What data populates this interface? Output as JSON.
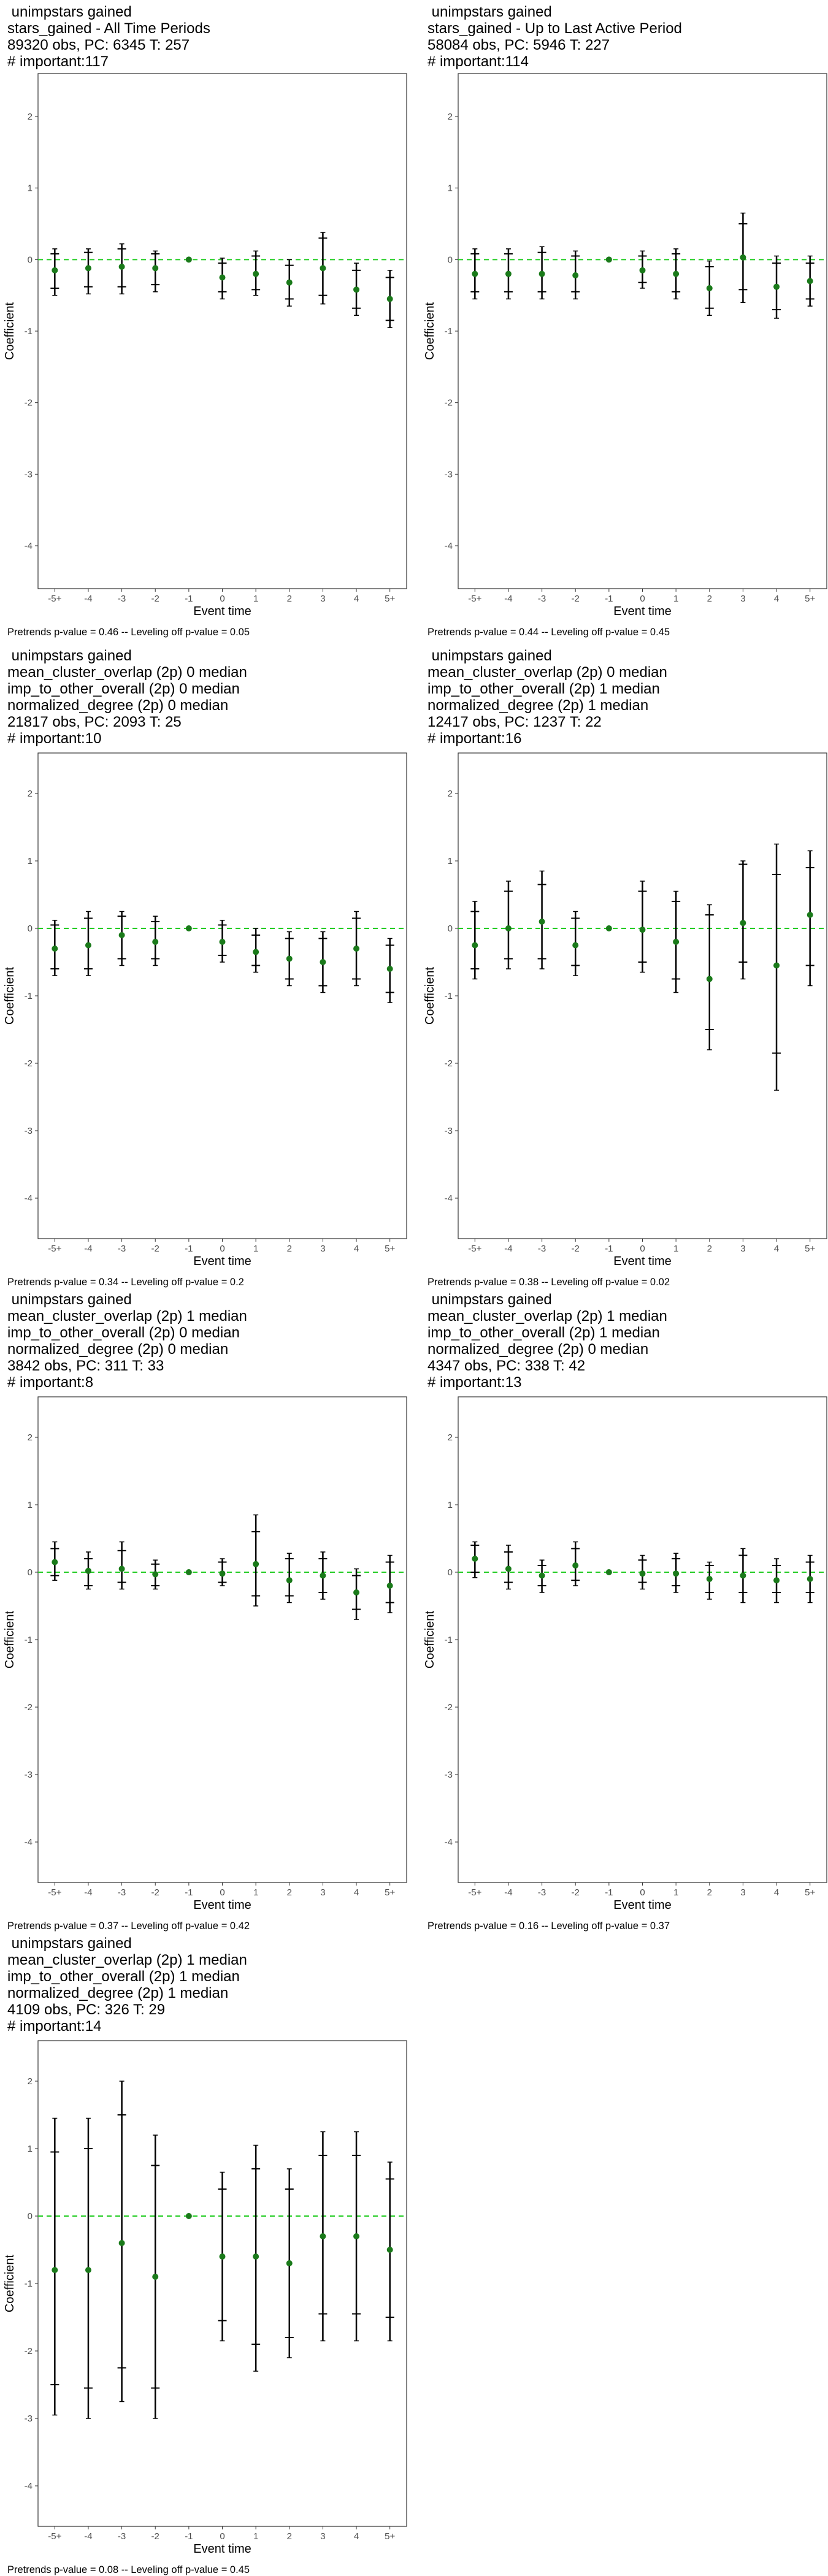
{
  "chart_data": [
    {
      "type": "scatter",
      "title_lines": [
        " unimpstars gained",
        "stars_gained - All Time Periods",
        "89320 obs, PC: 6345 T: 257",
        "# important:117"
      ],
      "xlabel": "Event time",
      "ylabel": "Coefficient",
      "categories": [
        "-5+",
        "-4",
        "-3",
        "-2",
        "-1",
        "0",
        "1",
        "2",
        "3",
        "4",
        "5+"
      ],
      "ylim": [
        -4.6,
        2.6
      ],
      "yticks": [
        2,
        1,
        0,
        -1,
        -2,
        -3,
        -4
      ],
      "reference_line": 0,
      "estimates": [
        -0.15,
        -0.12,
        -0.1,
        -0.12,
        0,
        -0.25,
        -0.2,
        -0.32,
        -0.12,
        -0.42,
        -0.55
      ],
      "ci90": [
        [
          -0.4,
          0.08
        ],
        [
          -0.38,
          0.1
        ],
        [
          -0.38,
          0.15
        ],
        [
          -0.35,
          0.08
        ],
        null,
        [
          -0.45,
          -0.05
        ],
        [
          -0.42,
          0.05
        ],
        [
          -0.55,
          -0.08
        ],
        [
          -0.5,
          0.3
        ],
        [
          -0.68,
          -0.15
        ],
        [
          -0.85,
          -0.25
        ]
      ],
      "ci95": [
        [
          -0.5,
          0.15
        ],
        [
          -0.48,
          0.15
        ],
        [
          -0.48,
          0.22
        ],
        [
          -0.45,
          0.12
        ],
        null,
        [
          -0.55,
          0.02
        ],
        [
          -0.5,
          0.12
        ],
        [
          -0.65,
          0.0
        ],
        [
          -0.62,
          0.38
        ],
        [
          -0.78,
          -0.05
        ],
        [
          -0.95,
          -0.15
        ]
      ],
      "footnote": "Pretrends p-value = 0.46 -- Leveling off p-value = 0.05",
      "colors": {
        "point": "#1a7a1a",
        "reference": "#22cc22"
      }
    },
    {
      "type": "scatter",
      "title_lines": [
        " unimpstars gained",
        "stars_gained - Up to Last Active Period",
        "58084 obs, PC: 5946 T: 227",
        "# important:114"
      ],
      "xlabel": "Event time",
      "ylabel": "Coefficient",
      "categories": [
        "-5+",
        "-4",
        "-3",
        "-2",
        "-1",
        "0",
        "1",
        "2",
        "3",
        "4",
        "5+"
      ],
      "ylim": [
        -4.6,
        2.6
      ],
      "yticks": [
        2,
        1,
        0,
        -1,
        -2,
        -3,
        -4
      ],
      "reference_line": 0,
      "estimates": [
        -0.2,
        -0.2,
        -0.2,
        -0.22,
        0,
        -0.15,
        -0.2,
        -0.4,
        0.03,
        -0.38,
        -0.3
      ],
      "ci90": [
        [
          -0.45,
          0.08
        ],
        [
          -0.45,
          0.08
        ],
        [
          -0.45,
          0.1
        ],
        [
          -0.45,
          0.05
        ],
        null,
        [
          -0.32,
          0.05
        ],
        [
          -0.45,
          0.08
        ],
        [
          -0.68,
          -0.1
        ],
        [
          -0.42,
          0.5
        ],
        [
          -0.7,
          -0.05
        ],
        [
          -0.55,
          -0.05
        ]
      ],
      "ci95": [
        [
          -0.55,
          0.15
        ],
        [
          -0.55,
          0.15
        ],
        [
          -0.55,
          0.18
        ],
        [
          -0.55,
          0.12
        ],
        null,
        [
          -0.4,
          0.12
        ],
        [
          -0.55,
          0.15
        ],
        [
          -0.78,
          -0.02
        ],
        [
          -0.6,
          0.65
        ],
        [
          -0.82,
          0.05
        ],
        [
          -0.65,
          0.05
        ]
      ],
      "footnote": "Pretrends p-value = 0.44 -- Leveling off p-value = 0.45",
      "colors": {
        "point": "#1a7a1a",
        "reference": "#22cc22"
      }
    },
    {
      "type": "scatter",
      "title_lines": [
        " unimpstars gained",
        "mean_cluster_overlap (2p) 0 median",
        "imp_to_other_overall (2p) 0 median",
        "normalized_degree (2p) 0 median",
        "21817 obs, PC: 2093 T: 25",
        "# important:10"
      ],
      "xlabel": "Event time",
      "ylabel": "Coefficient",
      "categories": [
        "-5+",
        "-4",
        "-3",
        "-2",
        "-1",
        "0",
        "1",
        "2",
        "3",
        "4",
        "5+"
      ],
      "ylim": [
        -4.6,
        2.6
      ],
      "yticks": [
        2,
        1,
        0,
        -1,
        -2,
        -3,
        -4
      ],
      "reference_line": 0,
      "estimates": [
        -0.3,
        -0.25,
        -0.1,
        -0.2,
        0,
        -0.2,
        -0.35,
        -0.45,
        -0.5,
        -0.3,
        -0.6
      ],
      "ci90": [
        [
          -0.6,
          0.05
        ],
        [
          -0.6,
          0.15
        ],
        [
          -0.45,
          0.18
        ],
        [
          -0.45,
          0.1
        ],
        null,
        [
          -0.4,
          0.05
        ],
        [
          -0.55,
          -0.1
        ],
        [
          -0.75,
          -0.15
        ],
        [
          -0.85,
          -0.15
        ],
        [
          -0.75,
          0.15
        ],
        [
          -0.95,
          -0.25
        ]
      ],
      "ci95": [
        [
          -0.7,
          0.12
        ],
        [
          -0.7,
          0.25
        ],
        [
          -0.55,
          0.25
        ],
        [
          -0.55,
          0.18
        ],
        null,
        [
          -0.5,
          0.12
        ],
        [
          -0.65,
          0.0
        ],
        [
          -0.85,
          -0.05
        ],
        [
          -0.95,
          -0.05
        ],
        [
          -0.85,
          0.25
        ],
        [
          -1.1,
          -0.15
        ]
      ],
      "footnote": "Pretrends p-value = 0.34 -- Leveling off p-value = 0.2",
      "colors": {
        "point": "#1a7a1a",
        "reference": "#22cc22"
      }
    },
    {
      "type": "scatter",
      "title_lines": [
        " unimpstars gained",
        "mean_cluster_overlap (2p) 0 median",
        "imp_to_other_overall (2p) 1 median",
        "normalized_degree (2p) 1 median",
        "12417 obs, PC: 1237 T: 22",
        "# important:16"
      ],
      "xlabel": "Event time",
      "ylabel": "Coefficient",
      "categories": [
        "-5+",
        "-4",
        "-3",
        "-2",
        "-1",
        "0",
        "1",
        "2",
        "3",
        "4",
        "5+"
      ],
      "ylim": [
        -4.6,
        2.6
      ],
      "yticks": [
        2,
        1,
        0,
        -1,
        -2,
        -3,
        -4
      ],
      "reference_line": 0,
      "estimates": [
        -0.25,
        0.0,
        0.1,
        -0.25,
        0,
        -0.02,
        -0.2,
        -0.75,
        0.08,
        -0.55,
        0.2
      ],
      "ci90": [
        [
          -0.6,
          0.25
        ],
        [
          -0.45,
          0.55
        ],
        [
          -0.45,
          0.65
        ],
        [
          -0.55,
          0.15
        ],
        null,
        [
          -0.5,
          0.55
        ],
        [
          -0.75,
          0.4
        ],
        [
          -1.5,
          0.2
        ],
        [
          -0.5,
          0.95
        ],
        [
          -1.85,
          0.8
        ],
        [
          -0.55,
          0.9
        ]
      ],
      "ci95": [
        [
          -0.75,
          0.4
        ],
        [
          -0.6,
          0.7
        ],
        [
          -0.6,
          0.85
        ],
        [
          -0.7,
          0.25
        ],
        null,
        [
          -0.65,
          0.7
        ],
        [
          -0.95,
          0.55
        ],
        [
          -1.8,
          0.35
        ],
        [
          -0.75,
          1.0
        ],
        [
          -2.4,
          1.25
        ],
        [
          -0.85,
          1.15
        ]
      ],
      "footnote": "Pretrends p-value = 0.38 -- Leveling off p-value = 0.02",
      "colors": {
        "point": "#1a7a1a",
        "reference": "#22cc22"
      }
    },
    {
      "type": "scatter",
      "title_lines": [
        " unimpstars gained",
        "mean_cluster_overlap (2p) 1 median",
        "imp_to_other_overall (2p) 0 median",
        "normalized_degree (2p) 0 median",
        "3842 obs, PC: 311 T: 33",
        "# important:8"
      ],
      "xlabel": "Event time",
      "ylabel": "Coefficient",
      "categories": [
        "-5+",
        "-4",
        "-3",
        "-2",
        "-1",
        "0",
        "1",
        "2",
        "3",
        "4",
        "5+"
      ],
      "ylim": [
        -4.6,
        2.6
      ],
      "yticks": [
        2,
        1,
        0,
        -1,
        -2,
        -3,
        -4
      ],
      "reference_line": 0,
      "estimates": [
        0.15,
        0.02,
        0.05,
        -0.03,
        0,
        -0.02,
        0.12,
        -0.12,
        -0.05,
        -0.3,
        -0.2
      ],
      "ci90": [
        [
          -0.05,
          0.35
        ],
        [
          -0.2,
          0.2
        ],
        [
          -0.15,
          0.32
        ],
        [
          -0.2,
          0.12
        ],
        null,
        [
          -0.15,
          0.15
        ],
        [
          -0.35,
          0.6
        ],
        [
          -0.35,
          0.2
        ],
        [
          -0.3,
          0.2
        ],
        [
          -0.55,
          -0.05
        ],
        [
          -0.45,
          0.15
        ]
      ],
      "ci95": [
        [
          -0.12,
          0.45
        ],
        [
          -0.25,
          0.3
        ],
        [
          -0.25,
          0.45
        ],
        [
          -0.25,
          0.18
        ],
        null,
        [
          -0.2,
          0.2
        ],
        [
          -0.5,
          0.85
        ],
        [
          -0.45,
          0.28
        ],
        [
          -0.4,
          0.3
        ],
        [
          -0.7,
          0.05
        ],
        [
          -0.6,
          0.25
        ]
      ],
      "footnote": "Pretrends p-value = 0.37 -- Leveling off p-value = 0.42",
      "colors": {
        "point": "#1a7a1a",
        "reference": "#22cc22"
      }
    },
    {
      "type": "scatter",
      "title_lines": [
        " unimpstars gained",
        "mean_cluster_overlap (2p) 1 median",
        "imp_to_other_overall (2p) 1 median",
        "normalized_degree (2p) 0 median",
        "4347 obs, PC: 338 T: 42",
        "# important:13"
      ],
      "xlabel": "Event time",
      "ylabel": "Coefficient",
      "categories": [
        "-5+",
        "-4",
        "-3",
        "-2",
        "-1",
        "0",
        "1",
        "2",
        "3",
        "4",
        "5+"
      ],
      "ylim": [
        -4.6,
        2.6
      ],
      "yticks": [
        2,
        1,
        0,
        -1,
        -2,
        -3,
        -4
      ],
      "reference_line": 0,
      "estimates": [
        0.2,
        0.05,
        -0.05,
        0.1,
        0,
        -0.02,
        -0.02,
        -0.1,
        -0.05,
        -0.12,
        -0.1
      ],
      "ci90": [
        [
          0.0,
          0.4
        ],
        [
          -0.15,
          0.3
        ],
        [
          -0.2,
          0.1
        ],
        [
          -0.12,
          0.35
        ],
        null,
        [
          -0.15,
          0.18
        ],
        [
          -0.2,
          0.2
        ],
        [
          -0.3,
          0.1
        ],
        [
          -0.3,
          0.25
        ],
        [
          -0.3,
          0.1
        ],
        [
          -0.3,
          0.15
        ]
      ],
      "ci95": [
        [
          -0.08,
          0.45
        ],
        [
          -0.25,
          0.4
        ],
        [
          -0.3,
          0.18
        ],
        [
          -0.2,
          0.45
        ],
        null,
        [
          -0.25,
          0.25
        ],
        [
          -0.3,
          0.28
        ],
        [
          -0.4,
          0.15
        ],
        [
          -0.45,
          0.35
        ],
        [
          -0.45,
          0.2
        ],
        [
          -0.45,
          0.25
        ]
      ],
      "footnote": "Pretrends p-value = 0.16 -- Leveling off p-value = 0.37",
      "colors": {
        "point": "#1a7a1a",
        "reference": "#22cc22"
      }
    },
    {
      "type": "scatter",
      "title_lines": [
        " unimpstars gained",
        "mean_cluster_overlap (2p) 1 median",
        "imp_to_other_overall (2p) 1 median",
        "normalized_degree (2p) 1 median",
        "4109 obs, PC: 326 T: 29",
        "# important:14"
      ],
      "xlabel": "Event time",
      "ylabel": "Coefficient",
      "categories": [
        "-5+",
        "-4",
        "-3",
        "-2",
        "-1",
        "0",
        "1",
        "2",
        "3",
        "4",
        "5+"
      ],
      "ylim": [
        -4.6,
        2.6
      ],
      "yticks": [
        2,
        1,
        0,
        -1,
        -2,
        -3,
        -4
      ],
      "reference_line": 0,
      "estimates": [
        -0.8,
        -0.8,
        -0.4,
        -0.9,
        0,
        -0.6,
        -0.6,
        -0.7,
        -0.3,
        -0.3,
        -0.5
      ],
      "ci90": [
        [
          -2.5,
          0.95
        ],
        [
          -2.55,
          1.0
        ],
        [
          -2.25,
          1.5
        ],
        [
          -2.55,
          0.75
        ],
        null,
        [
          -1.55,
          0.4
        ],
        [
          -1.9,
          0.7
        ],
        [
          -1.8,
          0.4
        ],
        [
          -1.45,
          0.9
        ],
        [
          -1.45,
          0.9
        ],
        [
          -1.5,
          0.55
        ]
      ],
      "ci95": [
        [
          -2.95,
          1.45
        ],
        [
          -3.0,
          1.45
        ],
        [
          -2.75,
          2.0
        ],
        [
          -3.0,
          1.2
        ],
        null,
        [
          -1.85,
          0.65
        ],
        [
          -2.3,
          1.05
        ],
        [
          -2.1,
          0.7
        ],
        [
          -1.85,
          1.25
        ],
        [
          -1.85,
          1.25
        ],
        [
          -1.85,
          0.8
        ]
      ],
      "footnote": "Pretrends p-value = 0.08 -- Leveling off p-value = 0.45",
      "colors": {
        "point": "#1a7a1a",
        "reference": "#22cc22"
      }
    }
  ]
}
